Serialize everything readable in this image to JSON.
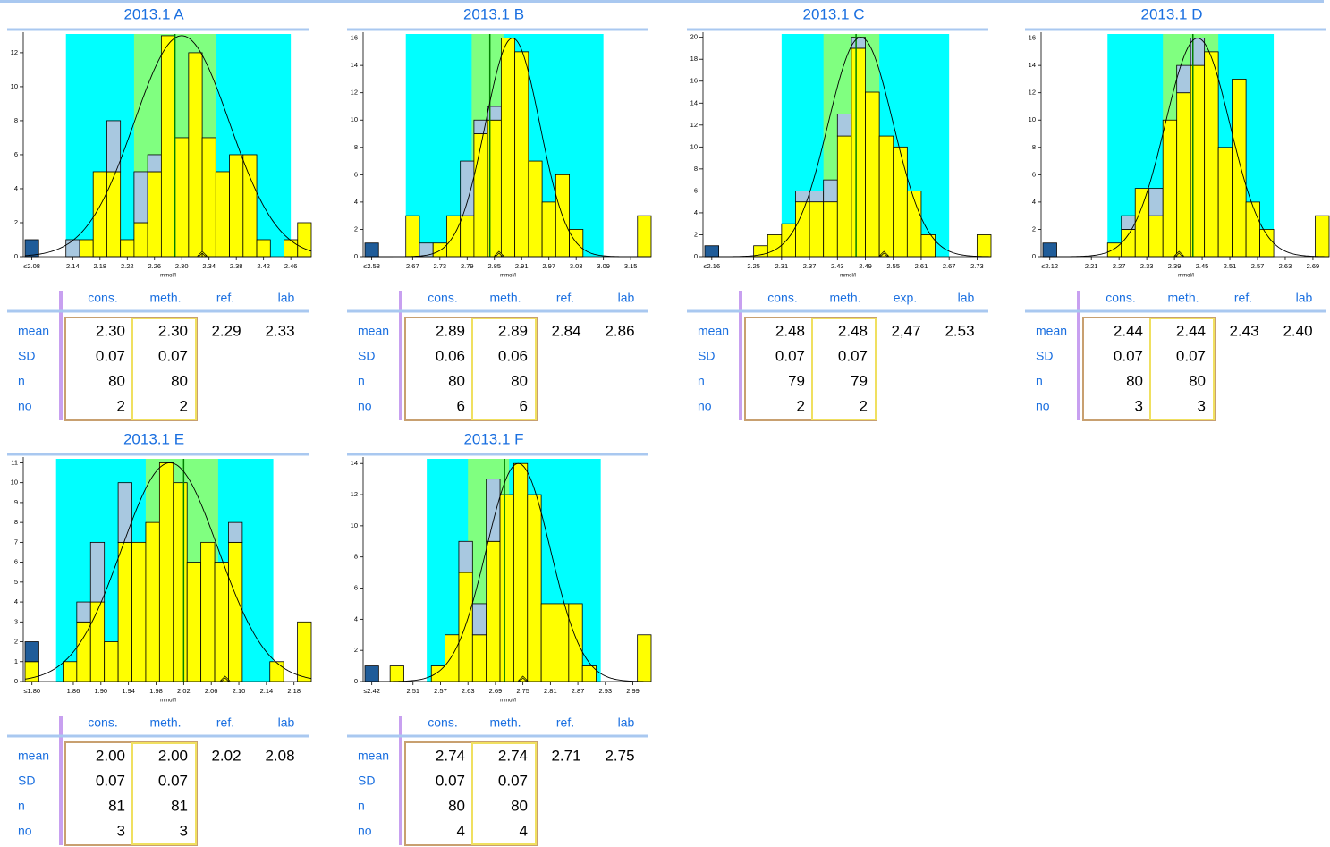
{
  "chart_data": [
    {
      "type": "histogram",
      "title": "2013.1 A",
      "xlabel": "mmol/l",
      "bins": [
        2.07,
        2.09,
        2.13,
        2.15,
        2.17,
        2.19,
        2.21,
        2.23,
        2.25,
        2.27,
        2.29,
        2.31,
        2.33,
        2.35,
        2.37,
        2.39,
        2.41,
        2.43,
        2.45,
        2.47,
        2.49
      ],
      "series": [
        {
          "color": "#ffff00",
          "values": [
            0,
            0,
            0,
            1,
            5,
            5,
            1,
            2,
            5,
            13,
            7,
            12,
            7,
            5,
            6,
            6,
            1,
            0,
            1,
            2
          ]
        },
        {
          "color": "#a8c8e0",
          "values": [
            0,
            0,
            1,
            0,
            0,
            3,
            0,
            3,
            1,
            0,
            0,
            0,
            0,
            0,
            0,
            0,
            0,
            0,
            0,
            0
          ]
        },
        {
          "color": "#1f5c99",
          "values": [
            1,
            0,
            0,
            0,
            0,
            0,
            0,
            0,
            0,
            0,
            0,
            0,
            0,
            0,
            0,
            0,
            0,
            0,
            0,
            0
          ]
        }
      ],
      "xlim": [
        2.07,
        2.49
      ],
      "xticks": [
        {
          "value": 2.08,
          "label": "≤2.08"
        },
        2.14,
        2.18,
        2.22,
        2.26,
        {
          "value": 2.3,
          "label": "2.30"
        },
        2.34,
        2.38,
        2.42,
        2.46
      ],
      "ylim": [
        0,
        13.1
      ],
      "yticks": [
        0,
        2,
        4,
        6,
        8,
        10,
        12
      ],
      "bands": [
        {
          "color": "#00ffff",
          "range": [
            2.13,
            2.46
          ]
        },
        {
          "color": "#80ff80",
          "range": [
            2.23,
            2.35
          ]
        }
      ],
      "ref_line": 2.29,
      "lab_marker": 2.33,
      "curve": {
        "mean": 2.3,
        "sd": 0.07,
        "peak": 13
      },
      "table": {
        "columns": [
          "cons.",
          "meth.",
          "ref.",
          "lab"
        ],
        "rows": [
          {
            "label": "mean",
            "values": [
              "2.30",
              "2.30",
              "2.29",
              "2.33"
            ]
          },
          {
            "label": "SD",
            "values": [
              "0.07",
              "0.07"
            ]
          },
          {
            "label": "n",
            "values": [
              "80",
              "80"
            ]
          },
          {
            "label": "no",
            "values": [
              "2",
              "2"
            ]
          }
        ]
      }
    },
    {
      "type": "histogram",
      "title": "2013.1 B",
      "xlabel": "mmol/l",
      "bins": [
        2.565,
        2.595,
        2.655,
        2.685,
        2.715,
        2.745,
        2.775,
        2.805,
        2.835,
        2.865,
        2.895,
        2.925,
        2.955,
        2.985,
        3.015,
        3.045,
        3.075,
        3.105,
        3.135,
        3.165,
        3.195
      ],
      "series": [
        {
          "color": "#ffff00",
          "values": [
            0,
            0,
            3,
            0,
            1,
            3,
            3,
            9,
            10,
            16,
            15,
            7,
            4,
            6,
            2,
            0,
            0,
            0,
            0,
            3
          ]
        },
        {
          "color": "#a8c8e0",
          "values": [
            0,
            0,
            0,
            1,
            0,
            0,
            4,
            1,
            1,
            0,
            0,
            0,
            0,
            0,
            0,
            0,
            0,
            0,
            0,
            0
          ]
        },
        {
          "color": "#1f5c99",
          "values": [
            1,
            0,
            0,
            0,
            0,
            0,
            0,
            0,
            0,
            0,
            0,
            0,
            0,
            0,
            0,
            0,
            0,
            0,
            0,
            0
          ]
        }
      ],
      "xlim": [
        2.565,
        3.195
      ],
      "xticks": [
        {
          "value": 2.58,
          "label": "≤2.58"
        },
        2.67,
        2.73,
        2.79,
        2.85,
        2.91,
        2.97,
        3.03,
        3.09,
        3.15
      ],
      "ylim": [
        0,
        16.3
      ],
      "yticks": [
        0,
        2,
        4,
        6,
        8,
        10,
        12,
        14,
        16
      ],
      "bands": [
        {
          "color": "#00ffff",
          "range": [
            2.655,
            3.09
          ]
        },
        {
          "color": "#80ff80",
          "range": [
            2.8,
            2.87
          ]
        }
      ],
      "ref_line": 2.84,
      "lab_marker": 2.86,
      "curve": {
        "mean": 2.89,
        "sd": 0.06,
        "peak": 16
      },
      "table": {
        "columns": [
          "cons.",
          "meth.",
          "ref.",
          "lab"
        ],
        "rows": [
          {
            "label": "mean",
            "values": [
              "2.89",
              "2.89",
              "2.84",
              "2.86"
            ]
          },
          {
            "label": "SD",
            "values": [
              "0.06",
              "0.06"
            ]
          },
          {
            "label": "n",
            "values": [
              "80",
              "80"
            ]
          },
          {
            "label": "no",
            "values": [
              "6",
              "6"
            ]
          }
        ]
      }
    },
    {
      "type": "histogram",
      "title": "2013.1 C",
      "xlabel": "mmol/l",
      "bins": [
        2.145,
        2.175,
        2.25,
        2.28,
        2.31,
        2.34,
        2.37,
        2.4,
        2.43,
        2.46,
        2.49,
        2.52,
        2.55,
        2.58,
        2.61,
        2.64,
        2.67,
        2.7,
        2.73,
        2.76
      ],
      "series": [
        {
          "color": "#ffff00",
          "values": [
            0,
            0,
            1,
            2,
            3,
            5,
            5,
            5,
            11,
            19,
            15,
            11,
            10,
            6,
            2,
            0,
            0,
            0,
            2
          ]
        },
        {
          "color": "#a8c8e0",
          "values": [
            0,
            0,
            0,
            0,
            0,
            1,
            1,
            2,
            2,
            1,
            0,
            0,
            0,
            0,
            0,
            0,
            0,
            0,
            0
          ]
        },
        {
          "color": "#1f5c99",
          "values": [
            1,
            0,
            0,
            0,
            0,
            0,
            0,
            0,
            0,
            0,
            0,
            0,
            0,
            0,
            0,
            0,
            0,
            0,
            0
          ]
        }
      ],
      "xlim": [
        2.145,
        2.76
      ],
      "xticks": [
        {
          "value": 2.16,
          "label": "≤2.16"
        },
        2.25,
        2.31,
        2.37,
        2.43,
        2.49,
        2.55,
        2.61,
        2.67,
        2.73
      ],
      "ylim": [
        0,
        20.3
      ],
      "yticks": [
        0,
        2,
        4,
        6,
        8,
        10,
        12,
        14,
        16,
        18,
        20
      ],
      "bands": [
        {
          "color": "#00ffff",
          "range": [
            2.31,
            2.67
          ]
        },
        {
          "color": "#80ff80",
          "range": [
            2.4,
            2.52
          ]
        }
      ],
      "ref_line": 2.47,
      "lab_marker": 2.53,
      "curve": {
        "mean": 2.48,
        "sd": 0.07,
        "peak": 20
      },
      "table": {
        "columns": [
          "cons.",
          "meth.",
          "exp.",
          "lab"
        ],
        "rows": [
          {
            "label": "mean",
            "values": [
              "2.48",
              "2.48",
              "2,47",
              "2.53"
            ]
          },
          {
            "label": "SD",
            "values": [
              "0.07",
              "0.07"
            ]
          },
          {
            "label": "n",
            "values": [
              "79",
              "79"
            ]
          },
          {
            "label": "no",
            "values": [
              "2",
              "2"
            ]
          }
        ]
      }
    },
    {
      "type": "histogram",
      "title": "2013.1 D",
      "xlabel": "mmol/l",
      "bins": [
        2.105,
        2.135,
        2.245,
        2.275,
        2.305,
        2.335,
        2.365,
        2.395,
        2.425,
        2.455,
        2.485,
        2.515,
        2.545,
        2.575,
        2.605,
        2.635,
        2.665,
        2.695,
        2.725
      ],
      "series": [
        {
          "color": "#ffff00",
          "values": [
            0,
            0,
            1,
            2,
            5,
            3,
            10,
            12,
            14,
            15,
            8,
            13,
            4,
            2,
            0,
            0,
            0,
            3
          ]
        },
        {
          "color": "#a8c8e0",
          "values": [
            0,
            0,
            0,
            1,
            0,
            2,
            0,
            2,
            2,
            0,
            0,
            0,
            0,
            0,
            0,
            0,
            0,
            0
          ]
        },
        {
          "color": "#1f5c99",
          "values": [
            1,
            0,
            0,
            0,
            0,
            0,
            0,
            0,
            0,
            0,
            0,
            0,
            0,
            0,
            0,
            0,
            0,
            0
          ]
        }
      ],
      "xlim": [
        2.105,
        2.725
      ],
      "xticks": [
        {
          "value": 2.12,
          "label": "≤2.12"
        },
        2.21,
        2.27,
        2.33,
        2.39,
        2.45,
        2.51,
        2.57,
        2.63,
        2.69
      ],
      "ylim": [
        0,
        16.3
      ],
      "yticks": [
        0,
        2,
        4,
        6,
        8,
        10,
        12,
        14,
        16
      ],
      "bands": [
        {
          "color": "#00ffff",
          "range": [
            2.245,
            2.605
          ]
        },
        {
          "color": "#80ff80",
          "range": [
            2.365,
            2.485
          ]
        }
      ],
      "ref_line": 2.43,
      "lab_marker": 2.4,
      "curve": {
        "mean": 2.44,
        "sd": 0.07,
        "peak": 16
      },
      "table": {
        "columns": [
          "cons.",
          "meth.",
          "ref.",
          "lab"
        ],
        "rows": [
          {
            "label": "mean",
            "values": [
              "2.44",
              "2.44",
              "2.43",
              "2.40"
            ]
          },
          {
            "label": "SD",
            "values": [
              "0.07",
              "0.07"
            ]
          },
          {
            "label": "n",
            "values": [
              "80",
              "80"
            ]
          },
          {
            "label": "no",
            "values": [
              "3",
              "3"
            ]
          }
        ]
      }
    },
    {
      "type": "histogram",
      "title": "2013.1 E",
      "xlabel": "mmol/l",
      "bins": [
        1.79,
        1.81,
        1.845,
        1.865,
        1.885,
        1.905,
        1.925,
        1.945,
        1.965,
        1.985,
        2.005,
        2.025,
        2.045,
        2.065,
        2.085,
        2.105,
        2.125,
        2.145,
        2.165,
        2.185,
        2.205
      ],
      "series": [
        {
          "color": "#ffff00",
          "values": [
            1,
            0,
            1,
            3,
            4,
            2,
            7,
            7,
            8,
            11,
            10,
            6,
            7,
            6,
            7,
            0,
            0,
            1,
            0,
            3
          ]
        },
        {
          "color": "#a8c8e0",
          "values": [
            0,
            0,
            0,
            1,
            3,
            0,
            3,
            0,
            0,
            0,
            0,
            0,
            0,
            0,
            1,
            0,
            0,
            0,
            0,
            0
          ]
        },
        {
          "color": "#1f5c99",
          "values": [
            1,
            0,
            0,
            0,
            0,
            0,
            0,
            0,
            0,
            0,
            0,
            0,
            0,
            0,
            0,
            0,
            0,
            0,
            0,
            0
          ]
        }
      ],
      "xlim": [
        1.79,
        2.205
      ],
      "xticks": [
        {
          "value": 1.8,
          "label": "≤1.80"
        },
        1.86,
        {
          "value": 1.9,
          "label": "1.90"
        },
        1.94,
        1.98,
        2.02,
        2.06,
        {
          "value": 2.1,
          "label": "2.10"
        },
        2.14,
        2.18
      ],
      "ylim": [
        0,
        11.2
      ],
      "yticks": [
        0,
        1,
        2,
        3,
        4,
        5,
        6,
        7,
        8,
        9,
        10,
        11
      ],
      "bands": [
        {
          "color": "#00ffff",
          "range": [
            1.835,
            2.15
          ]
        },
        {
          "color": "#80ff80",
          "range": [
            1.965,
            2.07
          ]
        }
      ],
      "ref_line": 2.02,
      "lab_marker": 2.08,
      "curve": {
        "mean": 2.0,
        "sd": 0.07,
        "peak": 11
      },
      "table": {
        "columns": [
          "cons.",
          "meth.",
          "ref.",
          "lab"
        ],
        "rows": [
          {
            "label": "mean",
            "values": [
              "2.00",
              "2.00",
              "2.02",
              "2.08"
            ]
          },
          {
            "label": "SD",
            "values": [
              "0.07",
              "0.07"
            ]
          },
          {
            "label": "n",
            "values": [
              "81",
              "81"
            ]
          },
          {
            "label": "no",
            "values": [
              "3",
              "3"
            ]
          }
        ]
      }
    },
    {
      "type": "histogram",
      "title": "2013.1 F",
      "xlabel": "mmol/l",
      "bins": [
        2.405,
        2.435,
        2.46,
        2.49,
        2.52,
        2.55,
        2.58,
        2.61,
        2.64,
        2.67,
        2.7,
        2.73,
        2.76,
        2.79,
        2.82,
        2.85,
        2.88,
        2.91,
        2.94,
        2.97,
        3.0,
        3.03
      ],
      "series": [
        {
          "color": "#ffff00",
          "values": [
            0,
            0,
            1,
            0,
            0,
            1,
            3,
            7,
            3,
            9,
            12,
            14,
            12,
            5,
            5,
            5,
            1,
            0,
            0,
            0,
            3
          ]
        },
        {
          "color": "#a8c8e0",
          "values": [
            0,
            0,
            0,
            0,
            0,
            0,
            0,
            2,
            2,
            4,
            0,
            0,
            0,
            0,
            0,
            0,
            0,
            0,
            0,
            0,
            0
          ]
        },
        {
          "color": "#1f5c99",
          "values": [
            1,
            0,
            0,
            0,
            0,
            0,
            0,
            0,
            0,
            0,
            0,
            0,
            0,
            0,
            0,
            0,
            0,
            0,
            0,
            0,
            0
          ]
        }
      ],
      "xlim": [
        2.405,
        3.03
      ],
      "xticks": [
        {
          "value": 2.42,
          "label": "≤2.42"
        },
        2.51,
        2.57,
        2.63,
        2.69,
        2.75,
        2.81,
        2.87,
        2.93,
        2.99
      ],
      "ylim": [
        0,
        14.3
      ],
      "yticks": [
        0,
        2,
        4,
        6,
        8,
        10,
        12,
        14
      ],
      "bands": [
        {
          "color": "#00ffff",
          "range": [
            2.54,
            2.92
          ]
        },
        {
          "color": "#80ff80",
          "range": [
            2.63,
            2.72
          ]
        }
      ],
      "ref_line": 2.71,
      "lab_marker": 2.75,
      "curve": {
        "mean": 2.74,
        "sd": 0.07,
        "peak": 14
      },
      "table": {
        "columns": [
          "cons.",
          "meth.",
          "ref.",
          "lab"
        ],
        "rows": [
          {
            "label": "mean",
            "values": [
              "2.74",
              "2.74",
              "2.71",
              "2.75"
            ]
          },
          {
            "label": "SD",
            "values": [
              "0.07",
              "0.07"
            ]
          },
          {
            "label": "n",
            "values": [
              "80",
              "80"
            ]
          },
          {
            "label": "no",
            "values": [
              "4",
              "4"
            ]
          }
        ]
      }
    }
  ]
}
